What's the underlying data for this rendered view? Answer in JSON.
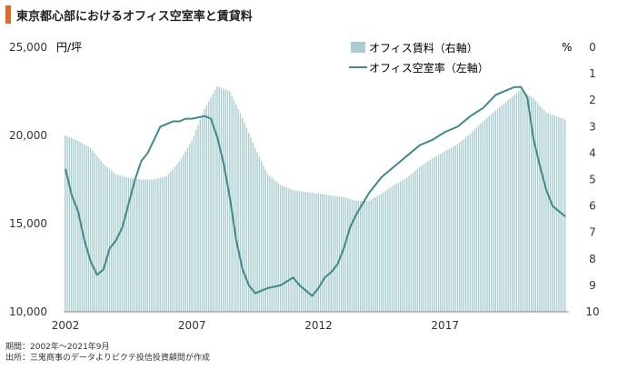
{
  "title": "東京都心部におけるオフィス空室率と賃貸料",
  "footer": {
    "period": "期間：2002年～2021年9月",
    "source": "出所：三鬼商事のデータよりピクテ投信投資顧問が作成"
  },
  "colors": {
    "accent": "#e0692a",
    "bars": "#a9cdd0",
    "line": "#3e8b8b"
  },
  "chart_data": {
    "type": "bar+line",
    "x_ticks": [
      "2002",
      "2007",
      "2012",
      "2017"
    ],
    "x_range": [
      2002.0,
      2021.75
    ],
    "left_axis": {
      "unit": "円/坪",
      "ticks": [
        "25,000",
        "20,000",
        "15,000",
        "10,000"
      ],
      "tick_values": [
        25000,
        20000,
        15000,
        10000
      ],
      "range": [
        10000,
        25000
      ]
    },
    "right_axis": {
      "unit": "%",
      "ticks": [
        "0",
        "1",
        "2",
        "3",
        "4",
        "5",
        "6",
        "7",
        "8",
        "9",
        "10"
      ],
      "tick_values": [
        0,
        1,
        2,
        3,
        4,
        5,
        6,
        7,
        8,
        9,
        10
      ],
      "range": [
        0,
        10
      ],
      "inverted": true
    },
    "series": [
      {
        "name": "オフィス賃料（右軸）",
        "type": "bar",
        "axis": "left",
        "x": [
          2002.0,
          2002.5,
          2003.0,
          2003.5,
          2004.0,
          2004.5,
          2005.0,
          2005.5,
          2006.0,
          2006.5,
          2007.0,
          2007.5,
          2008.0,
          2008.5,
          2009.0,
          2009.5,
          2010.0,
          2010.5,
          2011.0,
          2011.5,
          2012.0,
          2012.5,
          2013.0,
          2013.5,
          2014.0,
          2014.5,
          2015.0,
          2015.5,
          2016.0,
          2016.5,
          2017.0,
          2017.5,
          2018.0,
          2018.5,
          2019.0,
          2019.5,
          2020.0,
          2020.5,
          2021.0,
          2021.75
        ],
        "y": [
          20000,
          19700,
          19300,
          18400,
          17800,
          17600,
          17500,
          17500,
          17700,
          18500,
          19700,
          21500,
          22800,
          22500,
          21000,
          19300,
          17800,
          17200,
          16900,
          16800,
          16700,
          16600,
          16500,
          16300,
          16300,
          16700,
          17200,
          17600,
          18200,
          18700,
          19100,
          19500,
          20100,
          20800,
          21400,
          22000,
          22600,
          22100,
          21300,
          20900
        ]
      },
      {
        "name": "オフィス空室率（左軸）",
        "type": "line",
        "axis": "right",
        "x": [
          2002.0,
          2002.25,
          2002.5,
          2002.75,
          2003.0,
          2003.25,
          2003.5,
          2003.75,
          2004.0,
          2004.25,
          2004.5,
          2004.75,
          2005.0,
          2005.25,
          2005.5,
          2005.75,
          2006.0,
          2006.25,
          2006.5,
          2006.75,
          2007.0,
          2007.5,
          2007.75,
          2008.0,
          2008.25,
          2008.5,
          2008.75,
          2009.0,
          2009.25,
          2009.5,
          2009.75,
          2010.0,
          2010.5,
          2011.0,
          2011.25,
          2011.5,
          2011.75,
          2012.0,
          2012.25,
          2012.5,
          2012.75,
          2013.0,
          2013.25,
          2013.5,
          2014.0,
          2014.5,
          2015.0,
          2015.5,
          2016.0,
          2016.5,
          2017.0,
          2017.5,
          2018.0,
          2018.5,
          2019.0,
          2019.5,
          2019.75,
          2020.0,
          2020.25,
          2020.5,
          2020.75,
          2021.0,
          2021.25,
          2021.5,
          2021.75
        ],
        "y": [
          4.6,
          5.6,
          6.2,
          7.3,
          8.1,
          8.6,
          8.4,
          7.6,
          7.3,
          6.8,
          5.9,
          5.0,
          4.3,
          4.0,
          3.5,
          3.0,
          2.9,
          2.8,
          2.8,
          2.7,
          2.7,
          2.6,
          2.7,
          3.4,
          4.4,
          5.7,
          7.3,
          8.4,
          9.0,
          9.3,
          9.2,
          9.1,
          9.0,
          8.7,
          9.0,
          9.2,
          9.4,
          9.1,
          8.7,
          8.5,
          8.2,
          7.6,
          6.8,
          6.3,
          5.5,
          4.9,
          4.5,
          4.1,
          3.7,
          3.5,
          3.2,
          3.0,
          2.6,
          2.3,
          1.8,
          1.6,
          1.5,
          1.5,
          1.9,
          3.5,
          4.5,
          5.4,
          6.0,
          6.2,
          6.4
        ]
      }
    ]
  }
}
